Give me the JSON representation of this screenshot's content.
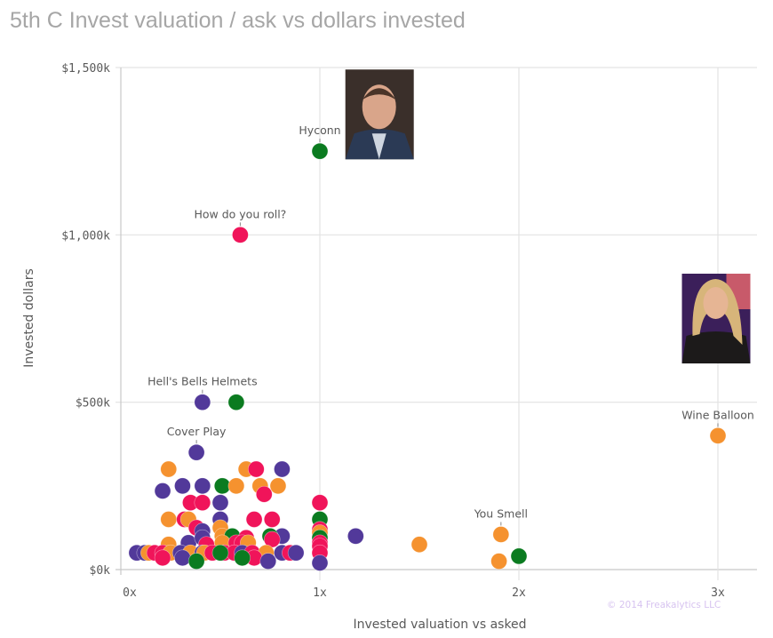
{
  "title": "5th C Invest valuation / ask vs dollars invested",
  "watermark": "© 2014 Freakalytics LLC",
  "chart_data": {
    "type": "scatter",
    "title": "5th C Invest valuation / ask vs dollars invested",
    "xlabel": "Invested valuation vs asked",
    "ylabel": "Invested dollars",
    "xlim": [
      0,
      3.2
    ],
    "ylim": [
      0,
      1500
    ],
    "xticks": [
      {
        "v": 0,
        "label": "0x"
      },
      {
        "v": 1,
        "label": "1x"
      },
      {
        "v": 2,
        "label": "2x"
      },
      {
        "v": 3,
        "label": "3x"
      }
    ],
    "yticks": [
      {
        "v": 0,
        "label": "$0k"
      },
      {
        "v": 500,
        "label": "$500k"
      },
      {
        "v": 1000,
        "label": "$1,000k"
      },
      {
        "v": 1500,
        "label": "$1,500k"
      }
    ],
    "grid": true,
    "colors": {
      "p": "#52399a",
      "k": "#f0145a",
      "o": "#f5922f",
      "g": "#0b7b20"
    },
    "images": [
      {
        "name": "mark-cuban-photo",
        "x": 1.3,
        "y": 1360,
        "theme": "dark-suit"
      },
      {
        "name": "lori-greiner-photo",
        "x": 3.0,
        "y": 750,
        "theme": "blonde"
      }
    ],
    "labels": [
      {
        "text": "Hyconn",
        "x": 1.0,
        "y": 1250
      },
      {
        "text": "How do you roll?",
        "x": 0.6,
        "y": 1000
      },
      {
        "text": "Hell's Bells Helmets",
        "x": 0.41,
        "y": 500
      },
      {
        "text": "Cover Play",
        "x": 0.38,
        "y": 350
      },
      {
        "text": "Wine Balloon",
        "x": 3.0,
        "y": 400
      },
      {
        "text": "You Smell",
        "x": 1.91,
        "y": 105
      }
    ],
    "points": [
      {
        "x": 1.0,
        "y": 1250,
        "c": "g"
      },
      {
        "x": 0.6,
        "y": 1000,
        "c": "k"
      },
      {
        "x": 0.41,
        "y": 500,
        "c": "p"
      },
      {
        "x": 0.58,
        "y": 500,
        "c": "g"
      },
      {
        "x": 0.38,
        "y": 350,
        "c": "p"
      },
      {
        "x": 3.0,
        "y": 400,
        "c": "o"
      },
      {
        "x": 1.91,
        "y": 105,
        "c": "o"
      },
      {
        "x": 2.0,
        "y": 40,
        "c": "g"
      },
      {
        "x": 1.9,
        "y": 25,
        "c": "o"
      },
      {
        "x": 1.5,
        "y": 75,
        "c": "o"
      },
      {
        "x": 1.18,
        "y": 100,
        "c": "p"
      },
      {
        "x": 0.24,
        "y": 300,
        "c": "o"
      },
      {
        "x": 0.63,
        "y": 300,
        "c": "o"
      },
      {
        "x": 0.68,
        "y": 300,
        "c": "k"
      },
      {
        "x": 0.81,
        "y": 300,
        "c": "p"
      },
      {
        "x": 0.21,
        "y": 235,
        "c": "p"
      },
      {
        "x": 0.31,
        "y": 250,
        "c": "p"
      },
      {
        "x": 0.41,
        "y": 250,
        "c": "p"
      },
      {
        "x": 0.51,
        "y": 250,
        "c": "g"
      },
      {
        "x": 0.58,
        "y": 250,
        "c": "o"
      },
      {
        "x": 0.7,
        "y": 250,
        "c": "o"
      },
      {
        "x": 0.79,
        "y": 250,
        "c": "o"
      },
      {
        "x": 0.72,
        "y": 225,
        "c": "k"
      },
      {
        "x": 0.35,
        "y": 200,
        "c": "k"
      },
      {
        "x": 0.41,
        "y": 200,
        "c": "k"
      },
      {
        "x": 0.5,
        "y": 200,
        "c": "p"
      },
      {
        "x": 1.0,
        "y": 200,
        "c": "k"
      },
      {
        "x": 0.24,
        "y": 150,
        "c": "o"
      },
      {
        "x": 0.32,
        "y": 150,
        "c": "k"
      },
      {
        "x": 0.34,
        "y": 150,
        "c": "o"
      },
      {
        "x": 0.5,
        "y": 150,
        "c": "p"
      },
      {
        "x": 0.67,
        "y": 150,
        "c": "k"
      },
      {
        "x": 0.76,
        "y": 150,
        "c": "k"
      },
      {
        "x": 1.0,
        "y": 150,
        "c": "g"
      },
      {
        "x": 0.38,
        "y": 125,
        "c": "k"
      },
      {
        "x": 0.5,
        "y": 125,
        "c": "o"
      },
      {
        "x": 0.41,
        "y": 115,
        "c": "p"
      },
      {
        "x": 1.0,
        "y": 120,
        "c": "k"
      },
      {
        "x": 0.51,
        "y": 100,
        "c": "o"
      },
      {
        "x": 0.56,
        "y": 100,
        "c": "g"
      },
      {
        "x": 0.63,
        "y": 95,
        "c": "k"
      },
      {
        "x": 0.81,
        "y": 100,
        "c": "p"
      },
      {
        "x": 0.75,
        "y": 100,
        "c": "g"
      },
      {
        "x": 0.76,
        "y": 90,
        "c": "k"
      },
      {
        "x": 1.0,
        "y": 110,
        "c": "o"
      },
      {
        "x": 1.0,
        "y": 95,
        "c": "g"
      },
      {
        "x": 0.24,
        "y": 75,
        "c": "o"
      },
      {
        "x": 0.34,
        "y": 80,
        "c": "p"
      },
      {
        "x": 0.41,
        "y": 95,
        "c": "p"
      },
      {
        "x": 0.43,
        "y": 75,
        "c": "k"
      },
      {
        "x": 0.51,
        "y": 80,
        "c": "o"
      },
      {
        "x": 0.58,
        "y": 80,
        "c": "k"
      },
      {
        "x": 0.61,
        "y": 80,
        "c": "k"
      },
      {
        "x": 0.64,
        "y": 80,
        "c": "o"
      },
      {
        "x": 1.0,
        "y": 80,
        "c": "k"
      },
      {
        "x": 1.0,
        "y": 70,
        "c": "k"
      },
      {
        "x": 0.08,
        "y": 50,
        "c": "p"
      },
      {
        "x": 0.12,
        "y": 50,
        "c": "p"
      },
      {
        "x": 0.14,
        "y": 50,
        "c": "o"
      },
      {
        "x": 0.17,
        "y": 50,
        "c": "k"
      },
      {
        "x": 0.21,
        "y": 50,
        "c": "k"
      },
      {
        "x": 0.25,
        "y": 50,
        "c": "o"
      },
      {
        "x": 0.3,
        "y": 50,
        "c": "p"
      },
      {
        "x": 0.35,
        "y": 50,
        "c": "o"
      },
      {
        "x": 0.41,
        "y": 50,
        "c": "p"
      },
      {
        "x": 0.42,
        "y": 50,
        "c": "o"
      },
      {
        "x": 0.46,
        "y": 50,
        "c": "k"
      },
      {
        "x": 0.52,
        "y": 50,
        "c": "k"
      },
      {
        "x": 0.57,
        "y": 50,
        "c": "k"
      },
      {
        "x": 0.61,
        "y": 50,
        "c": "p"
      },
      {
        "x": 0.66,
        "y": 50,
        "c": "k"
      },
      {
        "x": 0.73,
        "y": 50,
        "c": "o"
      },
      {
        "x": 0.81,
        "y": 50,
        "c": "p"
      },
      {
        "x": 0.85,
        "y": 50,
        "c": "k"
      },
      {
        "x": 0.88,
        "y": 50,
        "c": "p"
      },
      {
        "x": 1.0,
        "y": 50,
        "c": "k"
      },
      {
        "x": 0.21,
        "y": 35,
        "c": "k"
      },
      {
        "x": 0.31,
        "y": 35,
        "c": "p"
      },
      {
        "x": 0.67,
        "y": 35,
        "c": "k"
      },
      {
        "x": 0.5,
        "y": 50,
        "c": "g"
      },
      {
        "x": 0.61,
        "y": 35,
        "c": "g"
      },
      {
        "x": 0.74,
        "y": 25,
        "c": "p"
      },
      {
        "x": 0.38,
        "y": 25,
        "c": "g"
      },
      {
        "x": 1.0,
        "y": 20,
        "c": "p"
      }
    ]
  }
}
